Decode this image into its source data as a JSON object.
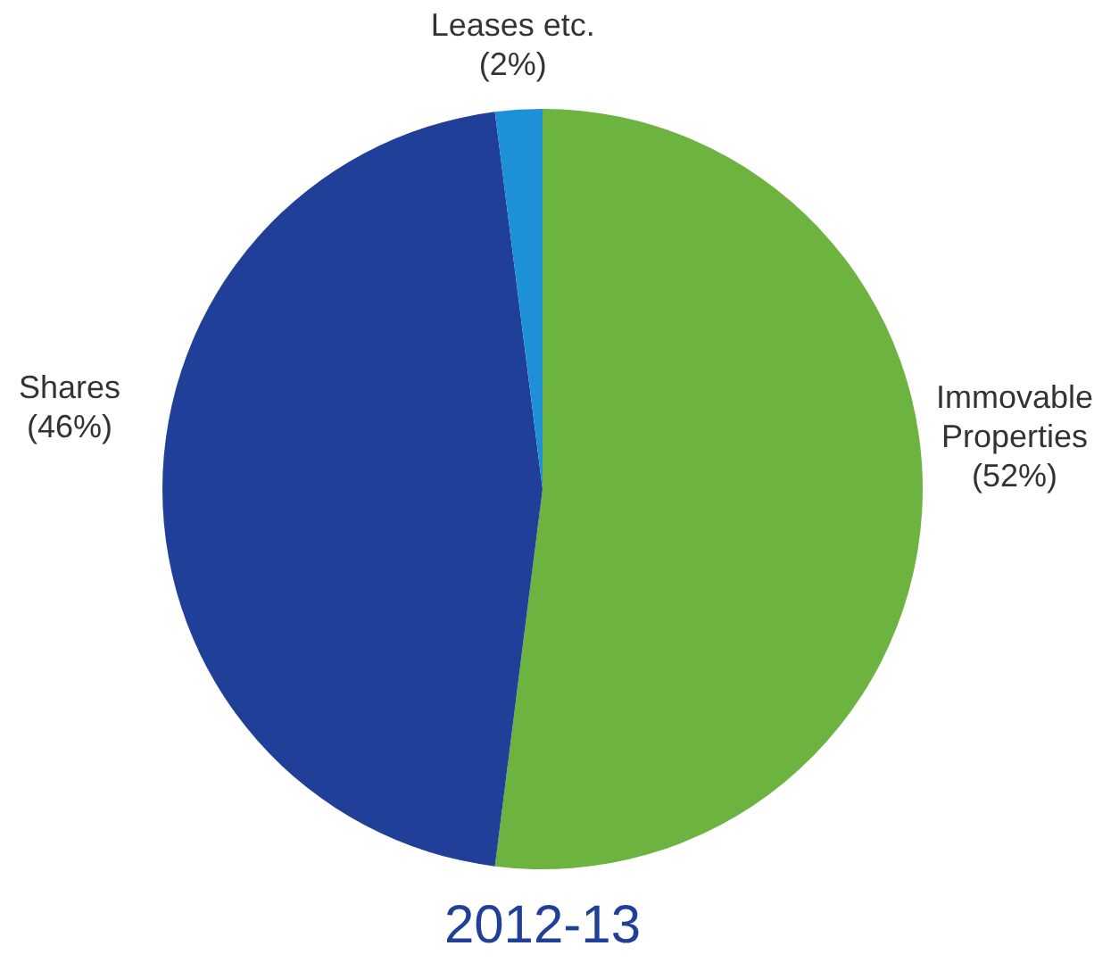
{
  "chart_data": {
    "type": "pie",
    "title": "2012-13",
    "categories": [
      "Immovable Properties",
      "Shares",
      "Leases etc."
    ],
    "values": [
      52,
      46,
      2
    ],
    "value_labels": [
      "(52%)",
      "(46%)",
      "(2%)"
    ],
    "colors": [
      "#6cb33f",
      "#1f3f98",
      "#1e90d8"
    ]
  }
}
